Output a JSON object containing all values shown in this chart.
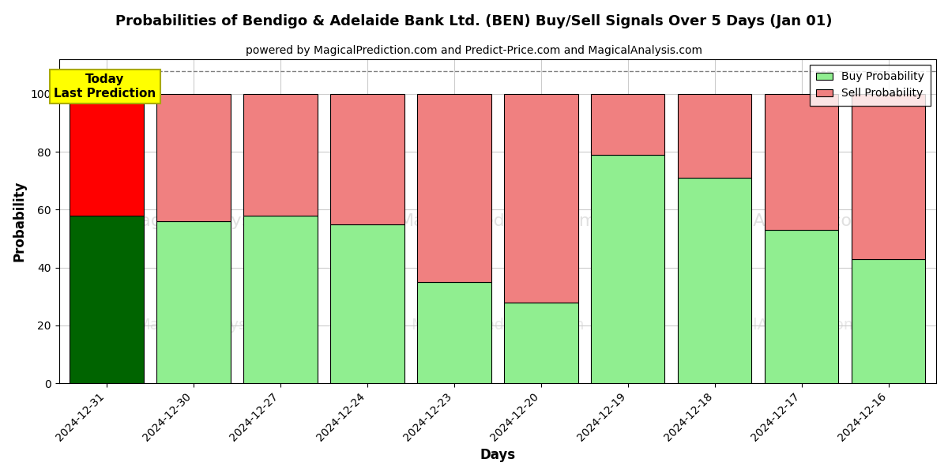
{
  "title": "Probabilities of Bendigo & Adelaide Bank Ltd. (BEN) Buy/Sell Signals Over 5 Days (Jan 01)",
  "subtitle": "powered by MagicalPrediction.com and Predict-Price.com and MagicalAnalysis.com",
  "xlabel": "Days",
  "ylabel": "Probability",
  "dates": [
    "2024-12-31",
    "2024-12-30",
    "2024-12-27",
    "2024-12-24",
    "2024-12-23",
    "2024-12-20",
    "2024-12-19",
    "2024-12-18",
    "2024-12-17",
    "2024-12-16"
  ],
  "buy_values": [
    58,
    56,
    58,
    55,
    35,
    28,
    79,
    71,
    53,
    43
  ],
  "sell_values": [
    42,
    44,
    42,
    45,
    65,
    72,
    21,
    29,
    47,
    57
  ],
  "first_bar_buy_color": "#006400",
  "first_bar_sell_color": "#ff0000",
  "other_buy_color": "#90EE90",
  "other_sell_color": "#F08080",
  "bar_edge_color": "black",
  "bar_width": 0.85,
  "ylim": [
    0,
    112
  ],
  "yticks": [
    0,
    20,
    40,
    60,
    80,
    100
  ],
  "legend_buy_color": "#90EE90",
  "legend_sell_color": "#F08080",
  "today_box_facecolor": "yellow",
  "today_box_edgecolor": "#cccc00",
  "today_label": "Today\nLast Prediction",
  "dashed_line_y": 108,
  "grid_color": "#cccccc",
  "watermark1": "MagicalAnalysis.com",
  "watermark2": "MagicalPrediction.com",
  "watermark3": "MagicalAnalysis.com",
  "legend_label_buy": "Buy Probability",
  "legend_label_sell": "Sell Probability"
}
